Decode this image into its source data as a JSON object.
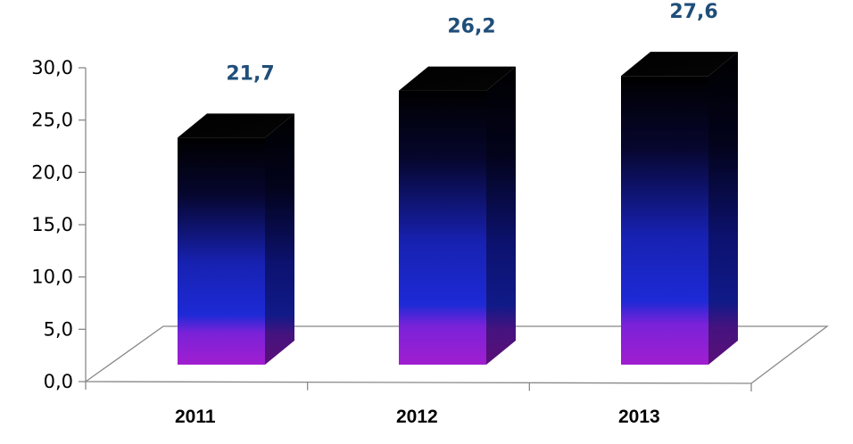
{
  "chart_data": {
    "type": "bar",
    "style": "3d-column",
    "categories": [
      "2011",
      "2012",
      "2013"
    ],
    "values": [
      21.7,
      26.2,
      27.6
    ],
    "value_labels": [
      "21,7",
      "26,2",
      "27,6"
    ],
    "yticks": [
      "0,0",
      "5,0",
      "10,0",
      "15,0",
      "20,0",
      "25,0",
      "30,0"
    ],
    "ylim": [
      0,
      30
    ],
    "grid": false,
    "legend": "none",
    "colors": {
      "bar_top": "#000000",
      "bar_mid_dark": "#0a0a40",
      "bar_mid": "#1c25c8",
      "bar_bottom": "#a020d0",
      "data_label": "#1f4e79",
      "axis": "#888888"
    }
  }
}
